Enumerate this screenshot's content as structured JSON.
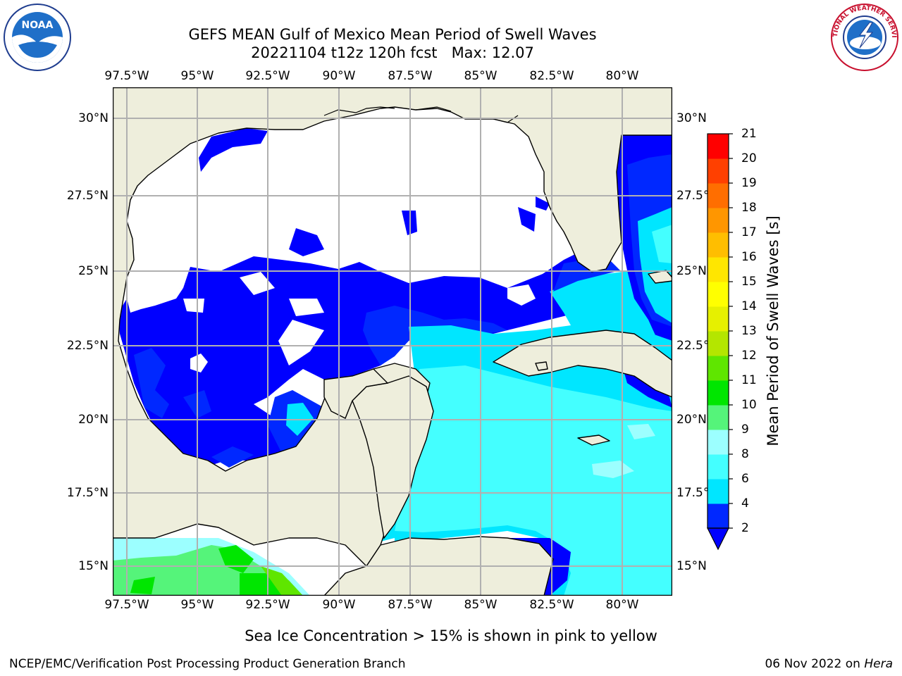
{
  "title": {
    "line1": "GEFS MEAN Gulf of Mexico Mean Period of Swell Waves",
    "line2": "20221104 t12z 120h fcst   Max: 12.07"
  },
  "lon_labels": [
    "97.5°W",
    "95°W",
    "92.5°W",
    "90°W",
    "87.5°W",
    "85°W",
    "82.5°W",
    "80°W"
  ],
  "lat_labels": [
    "30°N",
    "27.5°N",
    "25°N",
    "22.5°N",
    "20°N",
    "17.5°N",
    "15°N"
  ],
  "colorbar": {
    "label": "Mean Period of Swell Waves [s]",
    "ticks": [
      "2",
      "4",
      "6",
      "8",
      "9",
      "10",
      "11",
      "12",
      "13",
      "14",
      "15",
      "16",
      "17",
      "18",
      "19",
      "20",
      "21"
    ],
    "colors": [
      "#0028ff",
      "#00e6ff",
      "#44ffff",
      "#9cffff",
      "#55f47a",
      "#00e600",
      "#5fe600",
      "#b4e600",
      "#e6f000",
      "#ffff00",
      "#ffe600",
      "#ffbe00",
      "#ff9600",
      "#ff6e00",
      "#ff4000",
      "#ff0000"
    ],
    "extend_color": "#0000ff"
  },
  "map_colors": {
    "land": "#eeeedc",
    "lt2": "#0000ff",
    "c2_4": "#0028ff",
    "c4_6": "#00e6ff",
    "c6_8": "#44ffff",
    "c8_9": "#9cffff",
    "c9_10": "#55f47a",
    "c10_11": "#00e600",
    "c11_12": "#5fe600"
  },
  "note": "Sea Ice Concentration > 15% is shown in pink to yellow",
  "footer": {
    "left": "NCEP/EMC/Verification Post Processing Product Generation Branch",
    "date": "06 Nov 2022 on ",
    "host": "Hera"
  },
  "logos": {
    "noaa": "NOAA",
    "nws": "NATIONAL WEATHER SERVICE"
  }
}
